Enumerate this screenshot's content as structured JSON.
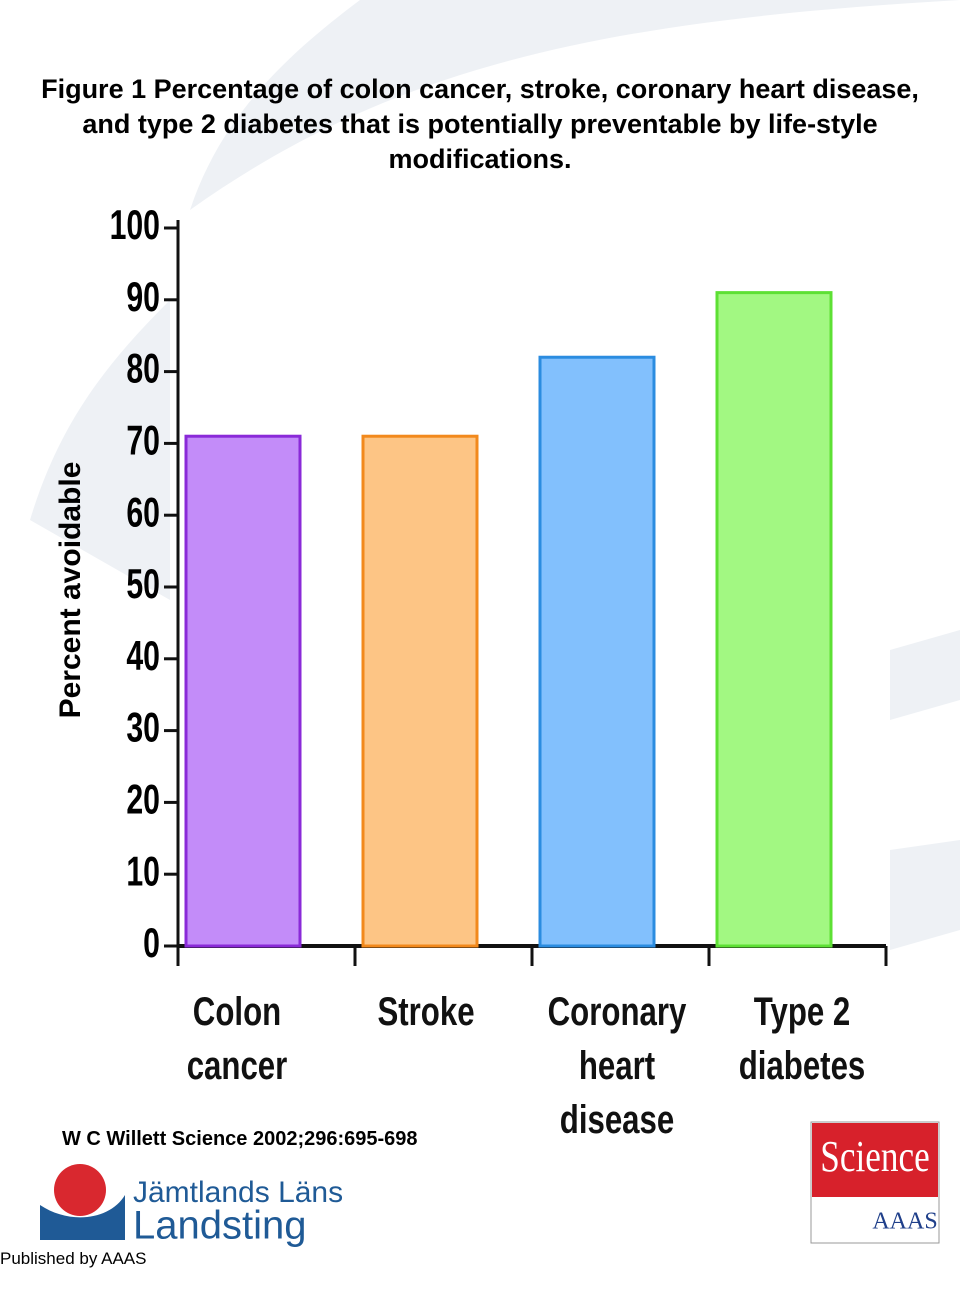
{
  "chart_data": {
    "type": "bar",
    "title": "Figure 1 Percentage of colon cancer, stroke, coronary heart disease, and type 2 diabetes that is potentially preventable by life-style modifications.",
    "ylabel": "Percent avoidable",
    "categories": [
      "Colon cancer",
      "Stroke",
      "Coronary heart disease",
      "Type 2 diabetes"
    ],
    "values": [
      71,
      71,
      82,
      91
    ],
    "colors": [
      "#c38cf9",
      "#fdc585",
      "#82c0fd",
      "#a2f882"
    ],
    "edge_colors": [
      "#8a2ad8",
      "#f2891c",
      "#2b8ce0",
      "#5de034"
    ],
    "ylim": [
      0,
      100
    ],
    "yticks": [
      0,
      10,
      20,
      30,
      40,
      50,
      60,
      70,
      80,
      90,
      100
    ]
  },
  "citation": "W C Willett Science 2002;296:695-698",
  "logo": {
    "line1": "Jämtlands Läns",
    "line2": "Landsting"
  },
  "publisher_logo": {
    "name": "Science",
    "org": "AAAS"
  },
  "footer": "Published by AAAS"
}
